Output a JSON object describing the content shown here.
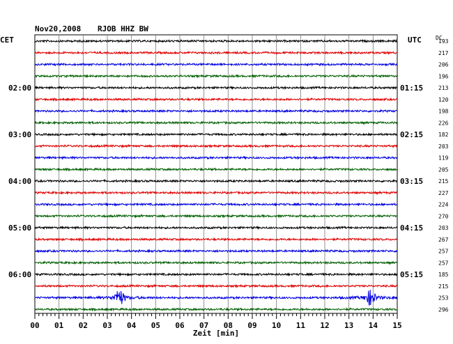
{
  "header": {
    "date": "Nov20,2008",
    "station": "RJOB HHZ BW",
    "left_timezone": "CET",
    "right_timezone": "UTC",
    "dc_label": "DC"
  },
  "colors": {
    "trace_cycle": [
      "#000000",
      "#e00000",
      "#0000e0",
      "#006000"
    ],
    "grid": "#777777"
  },
  "chart_data": {
    "type": "line",
    "title": "Nov20,2008 RJOB HHZ BW",
    "xlabel": "Zeit [min]",
    "ylabel": "",
    "xlim": [
      0,
      15
    ],
    "x_ticks": [
      "00",
      "01",
      "02",
      "03",
      "04",
      "05",
      "06",
      "07",
      "08",
      "09",
      "10",
      "11",
      "12",
      "13",
      "14",
      "15"
    ],
    "trace_minutes": 15,
    "trace_count": 24,
    "left_time_labels": [
      {
        "trace": 4,
        "label": "02:00"
      },
      {
        "trace": 8,
        "label": "03:00"
      },
      {
        "trace": 12,
        "label": "04:00"
      },
      {
        "trace": 16,
        "label": "05:00"
      },
      {
        "trace": 20,
        "label": "06:00"
      }
    ],
    "right_time_labels": [
      {
        "trace": 4,
        "label": "01:15"
      },
      {
        "trace": 8,
        "label": "02:15"
      },
      {
        "trace": 12,
        "label": "03:15"
      },
      {
        "trace": 16,
        "label": "04:15"
      },
      {
        "trace": 20,
        "label": "05:15"
      }
    ],
    "dc_offsets": [
      193,
      217,
      206,
      196,
      213,
      120,
      198,
      226,
      182,
      203,
      119,
      205,
      215,
      227,
      224,
      270,
      203,
      267,
      257,
      257,
      185,
      215,
      253,
      296
    ],
    "events": [
      {
        "trace": 22,
        "minute": 3.5,
        "amplitude": "large"
      },
      {
        "trace": 22,
        "minute": 13.9,
        "amplitude": "large"
      }
    ]
  }
}
